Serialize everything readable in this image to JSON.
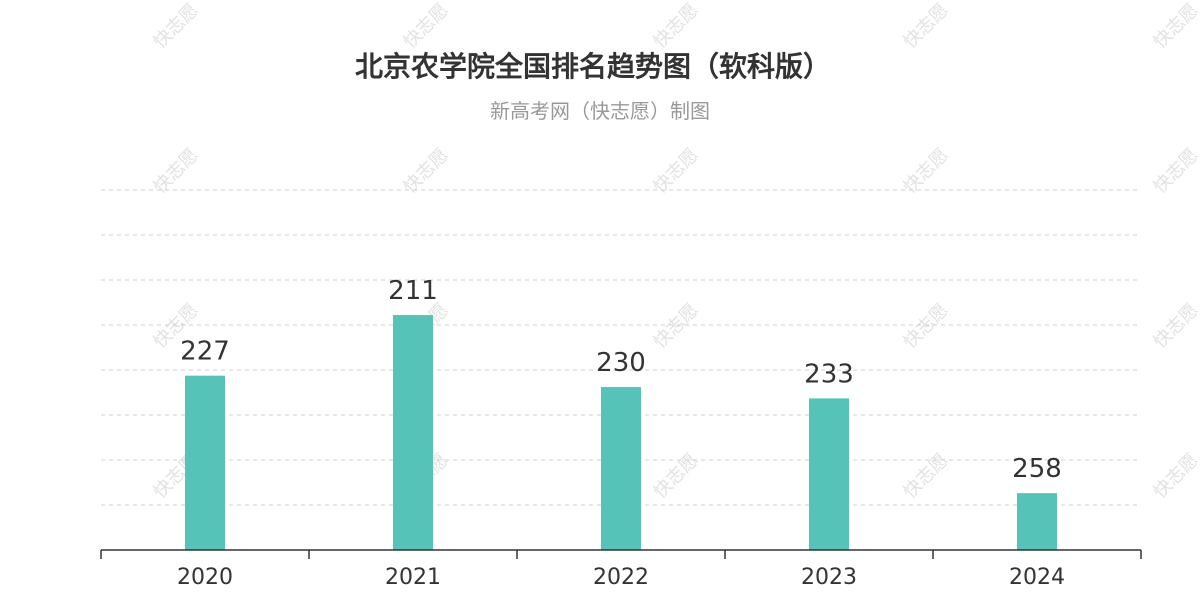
{
  "title": "北京农学院全国排名趋势图（软科版）",
  "subtitle": "新高考网（快志愿）制图",
  "watermark": "快志愿",
  "chart_data": {
    "type": "bar",
    "categories": [
      "2020",
      "2021",
      "2022",
      "2023",
      "2024"
    ],
    "values": [
      227,
      211,
      230,
      233,
      258
    ],
    "y_inverted": true,
    "ylim": [
      178,
      273
    ],
    "grid": true,
    "bar_color": "#55c3b8",
    "legend": "none"
  }
}
